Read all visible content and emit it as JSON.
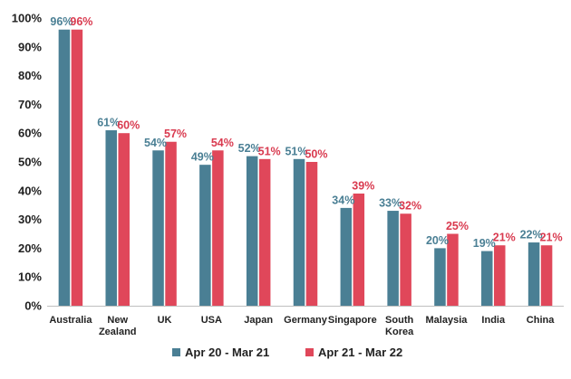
{
  "chart_data": {
    "type": "bar",
    "title": "",
    "xlabel": "",
    "ylabel": "",
    "ylim": [
      0,
      100
    ],
    "y_ticks": [
      0,
      10,
      20,
      30,
      40,
      50,
      60,
      70,
      80,
      90,
      100
    ],
    "y_tick_labels": [
      "0%",
      "10%",
      "20%",
      "30%",
      "40%",
      "50%",
      "60%",
      "70%",
      "80%",
      "90%",
      "100%"
    ],
    "grid": false,
    "legend_position": "bottom",
    "categories": [
      [
        "Australia"
      ],
      [
        "New",
        "Zealand"
      ],
      [
        "UK"
      ],
      [
        "USA"
      ],
      [
        "Japan"
      ],
      [
        "Germany"
      ],
      [
        "Singapore"
      ],
      [
        "South",
        "Korea"
      ],
      [
        "Malaysia"
      ],
      [
        "India"
      ],
      [
        "China"
      ]
    ],
    "series": [
      {
        "name": "Apr 20 - Mar 21",
        "color": "#4a7f94",
        "label_color": "#4a7f94",
        "values": [
          96,
          61,
          54,
          49,
          52,
          51,
          34,
          33,
          20,
          19,
          22
        ],
        "labels": [
          "96%",
          "61%",
          "54%",
          "49%",
          "52%",
          "51%",
          "34%",
          "33%",
          "20%",
          "19%",
          "22%"
        ]
      },
      {
        "name": "Apr 21 - Mar 22",
        "color": "#e0475a",
        "label_color": "#d93a4f",
        "values": [
          96,
          60,
          57,
          54,
          51,
          50,
          39,
          32,
          25,
          21,
          21
        ],
        "labels": [
          "96%",
          "60%",
          "57%",
          "54%",
          "51%",
          "50%",
          "39%",
          "32%",
          "25%",
          "21%",
          "21%"
        ]
      }
    ]
  }
}
